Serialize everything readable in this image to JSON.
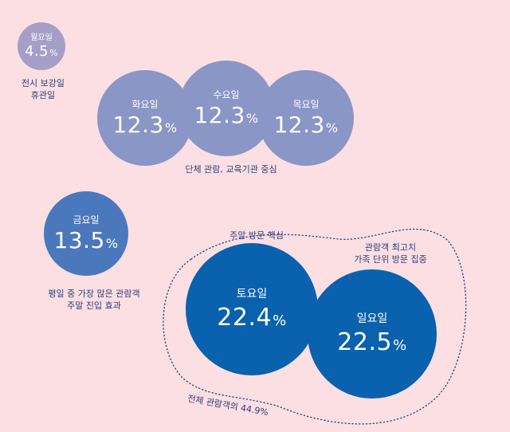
{
  "colors": {
    "background": "#fbdfe2",
    "weekday_light": "#a59fc8",
    "weekday": "#8996c6",
    "friday": "#4b78bd",
    "weekend": "#0a61ae",
    "text": "#2d3f7a"
  },
  "days": {
    "mon": {
      "label": "월요일",
      "value": "4.5",
      "unit": "%"
    },
    "tue": {
      "label": "화요일",
      "value": "12.3",
      "unit": "%"
    },
    "wed": {
      "label": "수요일",
      "value": "12.3",
      "unit": "%"
    },
    "thu": {
      "label": "목요일",
      "value": "12.3",
      "unit": "%"
    },
    "fri": {
      "label": "금요일",
      "value": "13.5",
      "unit": "%"
    },
    "sat": {
      "label": "토요일",
      "value": "22.4",
      "unit": "%"
    },
    "sun": {
      "label": "일요일",
      "value": "22.5",
      "unit": "%"
    }
  },
  "notes": {
    "mon_line1": "전시 보강일",
    "mon_line2": "휴관일",
    "midweek": "단체 관람, 교육기관 중심",
    "fri_line1": "평일 중 가장 많은 관람객",
    "fri_line2": "주말 진입 효과",
    "weekend_core": "주말 방문 핵심",
    "sun_line1": "관람객 최고치",
    "sun_line2": "가족 단위 방문 집중",
    "weekend_total": "전체 관람객의 44.9%"
  }
}
